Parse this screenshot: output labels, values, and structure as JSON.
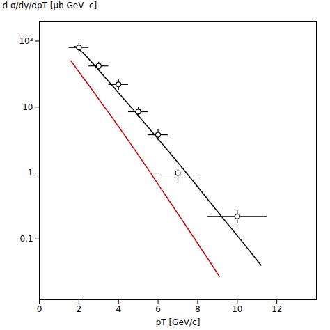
{
  "chart_data": {
    "type": "line",
    "xlabel": "pT [GeV/c]",
    "ylabel": "d σ/dy/dpT [μb GeV  c]",
    "log": "y",
    "grid": false,
    "xlim": [
      0,
      14
    ],
    "ylim": [
      0.012,
      200
    ],
    "xticks": [
      0,
      2,
      4,
      6,
      8,
      10,
      12
    ],
    "yticks": [
      0.1,
      1,
      10,
      {
        "value": 100,
        "label": "10²"
      }
    ],
    "series": [
      {
        "type": "line",
        "color": "#000000",
        "x": [
          1.8,
          2.2,
          2.7,
          3.2,
          3.7,
          4.2,
          4.7,
          5.2,
          5.7,
          6.2,
          6.7,
          7.2,
          7.7,
          8.2,
          8.7,
          9.2,
          9.7,
          10.2,
          10.7,
          11.2
        ],
        "values": [
          83.0,
          67.0,
          46.0,
          31.0,
          21.0,
          14.0,
          9.5,
          6.3,
          4.2,
          2.8,
          1.85,
          1.22,
          0.8,
          0.52,
          0.34,
          0.22,
          0.145,
          0.095,
          0.062,
          0.04
        ]
      },
      {
        "type": "line",
        "color": "#cc0000",
        "x": [
          1.6,
          2.1,
          2.6,
          3.1,
          3.6,
          4.1,
          4.6,
          5.1,
          5.6,
          6.1,
          6.6,
          7.1,
          7.6,
          8.1,
          8.6,
          9.1
        ],
        "values": [
          50.0,
          31.0,
          19.5,
          12.0,
          7.5,
          4.6,
          2.8,
          1.7,
          1.02,
          0.61,
          0.365,
          0.218,
          0.13,
          0.077,
          0.046,
          0.027
        ]
      },
      {
        "type": "scatter",
        "color": "#000000",
        "marker": "circle",
        "x": [
          2.0,
          3.0,
          4.0,
          5.0,
          6.0,
          7.0,
          10.0
        ],
        "values": [
          80.0,
          42.0,
          22.0,
          8.5,
          3.8,
          1.0,
          0.22
        ],
        "xerr": [
          0.5,
          0.5,
          0.5,
          0.5,
          0.5,
          1.0,
          1.5
        ],
        "yerr_lo": [
          12.0,
          6.0,
          4.0,
          1.5,
          0.7,
          0.3,
          0.05
        ],
        "yerr_hi": [
          12.0,
          6.0,
          4.0,
          1.5,
          0.7,
          0.3,
          0.05
        ]
      }
    ]
  }
}
